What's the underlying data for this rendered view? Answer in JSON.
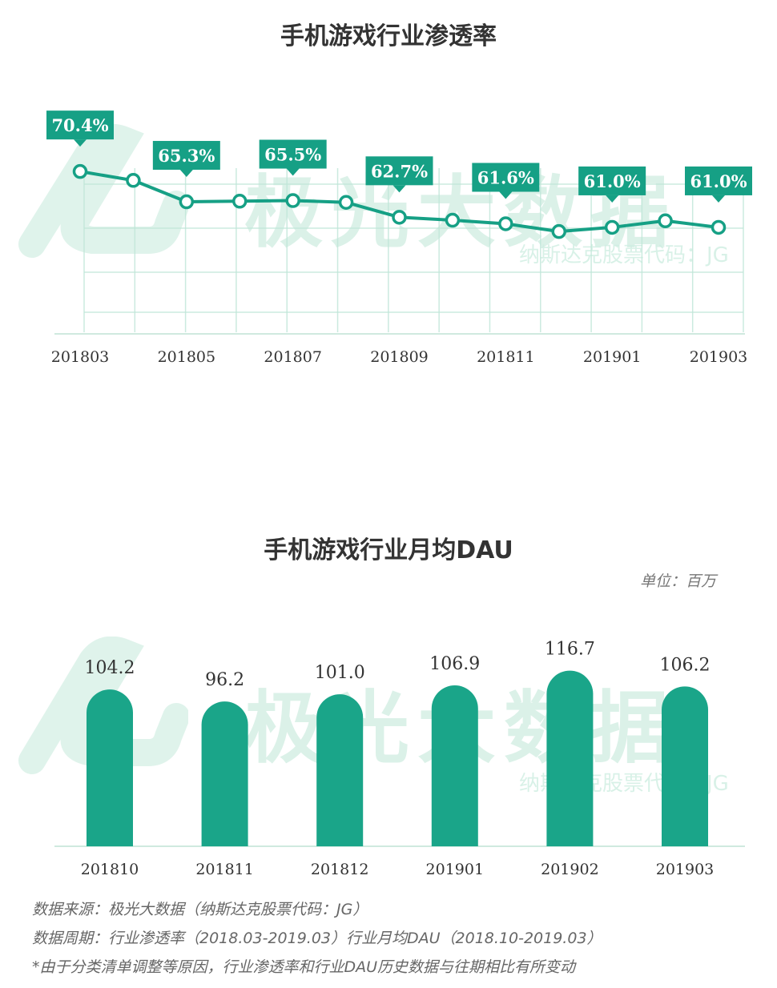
{
  "watermark": {
    "brand": "极光大数据",
    "stock": "纳斯达克股票代码：JG"
  },
  "colors": {
    "accent": "#16a085",
    "bar": "#1aa589",
    "grid": "#bfe6d8",
    "label_bg": "#16a085",
    "label_text": "#ffffff"
  },
  "chart_data": [
    {
      "type": "line",
      "title": "手机游戏行业渗透率",
      "x": [
        "201803",
        "201804",
        "201805",
        "201806",
        "201807",
        "201808",
        "201809",
        "201810",
        "201811",
        "201812",
        "201901",
        "201902",
        "201903"
      ],
      "tick_labels": [
        "201803",
        "201805",
        "201807",
        "201809",
        "201811",
        "201901",
        "201903"
      ],
      "series": [
        {
          "values": [
            70.4,
            68.9,
            65.3,
            65.4,
            65.5,
            65.2,
            62.7,
            62.2,
            61.6,
            60.3,
            61.0,
            62.1,
            61.0
          ]
        }
      ],
      "data_labels": [
        {
          "x": "201803",
          "text": "70.4%"
        },
        {
          "x": "201805",
          "text": "65.3%"
        },
        {
          "x": "201807",
          "text": "65.5%"
        },
        {
          "x": "201809",
          "text": "62.7%"
        },
        {
          "x": "201811",
          "text": "61.6%"
        },
        {
          "x": "201901",
          "text": "61.0%"
        },
        {
          "x": "201903",
          "text": "61.0%"
        }
      ],
      "ylim": [
        0,
        80
      ],
      "grid": true
    },
    {
      "type": "bar",
      "title": "手机游戏行业月均DAU",
      "unit": "单位：百万",
      "categories": [
        "201810",
        "201811",
        "201812",
        "201901",
        "201902",
        "201903"
      ],
      "values": [
        104.2,
        96.2,
        101.0,
        106.9,
        116.7,
        106.2
      ],
      "value_labels": [
        "104.2",
        "96.2",
        "101.0",
        "106.9",
        "116.7",
        "106.2"
      ],
      "ylim": [
        0,
        125
      ]
    }
  ],
  "footnotes": [
    "数据来源：极光大数据（纳斯达克股票代码：JG）",
    "数据周期：行业渗透率（2018.03-2019.03）行业月均DAU（2018.10-2019.03）",
    "*由于分类清单调整等原因，行业渗透率和行业DAU历史数据与往期相比有所变动"
  ]
}
